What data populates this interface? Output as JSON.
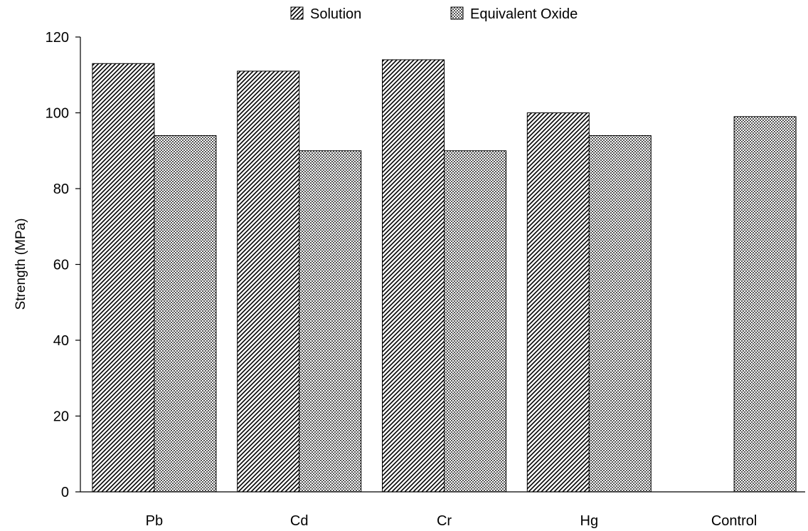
{
  "chart_data": {
    "type": "bar",
    "title": "",
    "xlabel": "",
    "ylabel": "Strength (MPa)",
    "ylim": [
      0,
      120
    ],
    "yticks": [
      "0",
      "20",
      "40",
      "60",
      "80",
      "100",
      "120"
    ],
    "categories": [
      "Pb",
      "Cd",
      "Cr",
      "Hg",
      "Control"
    ],
    "series": [
      {
        "name": "Solution",
        "values": [
          113,
          111,
          114,
          100,
          null
        ]
      },
      {
        "name": "Equivalent Oxide",
        "values": [
          94,
          90,
          90,
          94,
          99
        ]
      }
    ],
    "legend_position": "top-center",
    "grid": false
  }
}
